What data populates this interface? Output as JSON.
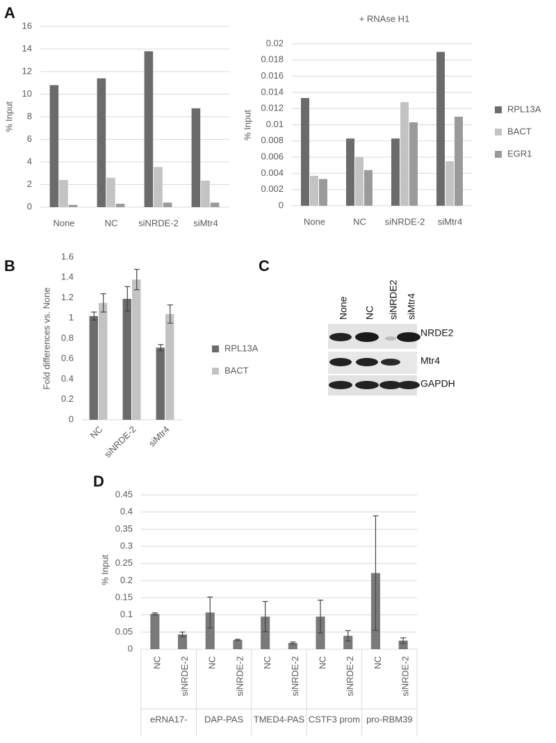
{
  "panels": [
    "A",
    "B",
    "C",
    "D"
  ],
  "blot": {
    "lanes": [
      "None",
      "NC",
      "siNRDE2",
      "siMtr4"
    ],
    "rows": [
      "NRDE2",
      "Mtr4",
      "GAPDH"
    ]
  },
  "chart_data": [
    {
      "type": "bar",
      "ylabel": "% Input",
      "categories": [
        "None",
        "NC",
        "siNRDE-2",
        "siMtr4"
      ],
      "series": [
        {
          "color": "#6b6b6b",
          "values": [
            10.8,
            11.4,
            13.8,
            8.75
          ]
        },
        {
          "color": "#c3c3c3",
          "values": [
            2.4,
            2.6,
            3.55,
            2.35
          ]
        },
        {
          "color": "#9a9a9a",
          "values": [
            0.2,
            0.3,
            0.4,
            0.4
          ]
        }
      ],
      "ylim": [
        0,
        16
      ],
      "yticks": [
        0,
        2,
        4,
        6,
        8,
        10,
        12,
        14,
        16
      ],
      "grid": true
    },
    {
      "type": "bar",
      "title": "+ RNAse H1",
      "ylabel": "% Input",
      "categories": [
        "None",
        "NC",
        "siNRDE-2",
        "siMtr4"
      ],
      "series": [
        {
          "name": "RPL13A",
          "color": "#6b6b6b",
          "values": [
            0.0133,
            0.0083,
            0.0083,
            0.019
          ]
        },
        {
          "name": "BACT",
          "color": "#c3c3c3",
          "values": [
            0.0037,
            0.006,
            0.0128,
            0.0055
          ]
        },
        {
          "name": "EGR1",
          "color": "#9a9a9a",
          "values": [
            0.0033,
            0.0044,
            0.0103,
            0.011
          ]
        }
      ],
      "ylim": [
        0,
        0.02
      ],
      "yticks": [
        0,
        0.002,
        0.004,
        0.006,
        0.008,
        0.01,
        0.012,
        0.014,
        0.016,
        0.018,
        0.02
      ],
      "grid": true,
      "legend": "right"
    },
    {
      "type": "bar",
      "ylabel": "Fold differences vs. None",
      "categories": [
        "NC",
        "siNRDE-2",
        "siMtr4"
      ],
      "series": [
        {
          "name": "RPL13A",
          "color": "#6b6b6b",
          "values": [
            1.02,
            1.19,
            0.71
          ],
          "errors": [
            0.04,
            0.12,
            0.03
          ]
        },
        {
          "name": "BACT",
          "color": "#c3c3c3",
          "values": [
            1.15,
            1.38,
            1.04
          ],
          "errors": [
            0.09,
            0.1,
            0.09
          ]
        }
      ],
      "ylim": [
        0,
        1.6
      ],
      "yticks": [
        0,
        0.2,
        0.4,
        0.6,
        0.8,
        1,
        1.2,
        1.4,
        1.6
      ],
      "grid": false,
      "legend": "right"
    },
    {
      "type": "bar",
      "ylabel": "% Input",
      "categories": [
        "NC",
        "siNRDE-2",
        "NC",
        "siNRDE-2",
        "NC",
        "siNRDE-2",
        "NC",
        "siNRDE-2",
        "NC",
        "siNRDE-2"
      ],
      "groups": [
        "eRNA17-",
        "DAP-PAS",
        "TMED4-PAS",
        "CSTF3 prom",
        "pro-RBM39"
      ],
      "series": [
        {
          "color": "#7a7a7a",
          "values": [
            0.103,
            0.043,
            0.107,
            0.027,
            0.095,
            0.018,
            0.095,
            0.039,
            0.222,
            0.025
          ],
          "errors": [
            0.003,
            0.007,
            0.045,
            0.002,
            0.044,
            0.003,
            0.048,
            0.015,
            0.167,
            0.008
          ]
        }
      ],
      "ylim": [
        0,
        0.45
      ],
      "yticks": [
        0,
        0.05,
        0.1,
        0.15,
        0.2,
        0.25,
        0.3,
        0.35,
        0.4,
        0.45
      ],
      "grid": true
    }
  ]
}
